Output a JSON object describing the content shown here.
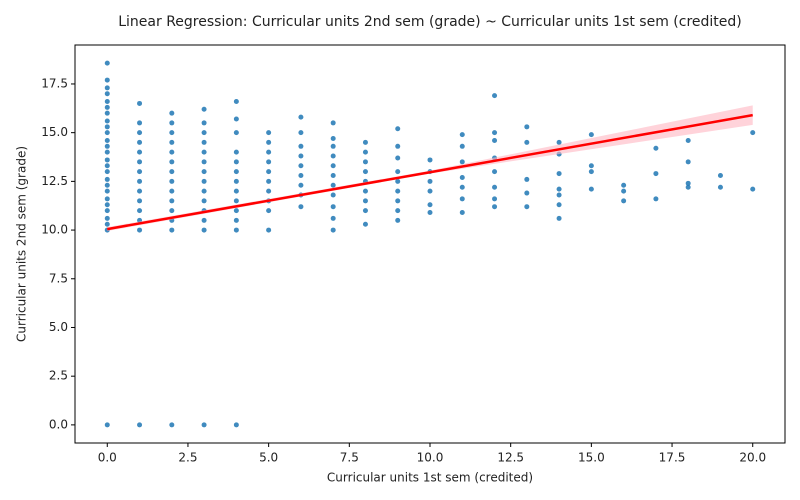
{
  "chart_data": {
    "type": "scatter",
    "title": "Linear Regression: Curricular units 2nd sem (grade) ~ Curricular units 1st sem (credited)",
    "x_label": "Curricular units 1st sem (credited)",
    "y_label": "Curricular units 2nd sem (grade)",
    "color": "#1f77b4",
    "x": [
      0,
      0,
      0,
      0,
      0,
      0,
      0,
      0,
      0,
      0,
      0,
      0,
      0,
      0,
      0,
      0,
      0,
      0,
      0,
      0,
      0,
      0,
      0,
      0,
      0,
      0,
      1,
      1,
      1,
      1,
      1,
      1,
      1,
      1,
      1,
      1,
      1,
      1,
      1,
      1,
      2,
      2,
      2,
      2,
      2,
      2,
      2,
      2,
      2,
      2,
      2,
      2,
      2,
      2,
      3,
      3,
      3,
      3,
      3,
      3,
      3,
      3,
      3,
      3,
      3,
      3,
      3,
      3,
      4,
      4,
      4,
      4,
      4,
      4,
      4,
      4,
      4,
      4,
      4,
      4,
      4,
      5,
      5,
      5,
      5,
      5,
      5,
      5,
      5,
      5,
      5,
      6,
      6,
      6,
      6,
      6,
      6,
      6,
      6,
      6,
      7,
      7,
      7,
      7,
      7,
      7,
      7,
      7,
      7,
      7,
      7,
      8,
      8,
      8,
      8,
      8,
      8,
      8,
      8,
      8,
      9,
      9,
      9,
      9,
      9,
      9,
      9,
      9,
      9,
      10,
      10,
      10,
      10,
      10,
      10,
      11,
      11,
      11,
      11,
      11,
      11,
      11,
      12,
      12,
      12,
      12,
      12,
      12,
      12,
      12,
      13,
      13,
      13,
      13,
      13,
      14,
      14,
      14,
      14,
      14,
      14,
      14,
      15,
      15,
      15,
      15,
      16,
      16,
      16,
      17,
      17,
      17,
      18,
      18,
      18,
      18,
      19,
      19,
      20,
      20
    ],
    "y": [
      0,
      10,
      10.3,
      10.6,
      11,
      11.3,
      11.6,
      12,
      12.3,
      12.6,
      13,
      13.3,
      13.6,
      14,
      14.3,
      14.6,
      15,
      15.3,
      15.6,
      16,
      16.3,
      16.6,
      17,
      17.3,
      17.7,
      18.57,
      0,
      10,
      10.5,
      11,
      11.5,
      12,
      12.5,
      13,
      13.5,
      14,
      14.5,
      15,
      15.5,
      16.5,
      0,
      10,
      10.5,
      11,
      11.5,
      12,
      12.5,
      13,
      13.5,
      14,
      14.5,
      15,
      15.5,
      16,
      0,
      10,
      10.5,
      11,
      11.5,
      12,
      12.5,
      13,
      13.5,
      14,
      14.5,
      15,
      15.5,
      16.2,
      0,
      10,
      10.5,
      11,
      11.5,
      12,
      12.5,
      13,
      13.5,
      14,
      15,
      15.7,
      16.6,
      10,
      11,
      11.5,
      12,
      12.5,
      13,
      13.5,
      14,
      14.5,
      15,
      11.2,
      11.8,
      12.3,
      12.8,
      13.3,
      13.8,
      14.3,
      15,
      15.8,
      10,
      10.6,
      11.2,
      11.8,
      12.3,
      12.8,
      13.3,
      13.8,
      14.3,
      14.7,
      15.5,
      10.3,
      11,
      11.5,
      12,
      12.5,
      13,
      13.5,
      14,
      14.5,
      10.5,
      11,
      11.5,
      12,
      12.5,
      13,
      13.7,
      14.3,
      15.2,
      10.9,
      11.3,
      12,
      12.5,
      13,
      13.6,
      10.9,
      11.6,
      12.2,
      12.7,
      13.5,
      14.3,
      14.9,
      11.2,
      11.6,
      12.2,
      13,
      13.7,
      14.6,
      15,
      16.9,
      11.2,
      11.9,
      12.6,
      14.5,
      15.3,
      10.6,
      11.3,
      11.8,
      12.1,
      12.9,
      13.9,
      14.5,
      12.1,
      13,
      13.3,
      14.9,
      11.5,
      12,
      12.3,
      11.6,
      12.9,
      14.2,
      12.2,
      12.4,
      13.5,
      14.6,
      12.2,
      12.8,
      12.1,
      15
    ],
    "regression": {
      "color": "#ff0000",
      "band_color": "#ffb6c1",
      "x": [
        0,
        10,
        20
      ],
      "y": [
        10.05,
        12.97,
        15.9
      ],
      "ci_lower": [
        9.95,
        12.9,
        15.4
      ],
      "ci_upper": [
        10.15,
        13.05,
        16.4
      ]
    },
    "xlim": [
      -1,
      21
    ],
    "ylim": [
      -0.93,
      19.5
    ],
    "xticks": [
      {
        "value": 0,
        "label": "0.0"
      },
      {
        "value": 2.5,
        "label": "2.5"
      },
      {
        "value": 5,
        "label": "5.0"
      },
      {
        "value": 7.5,
        "label": "7.5"
      },
      {
        "value": 10,
        "label": "10.0"
      },
      {
        "value": 12.5,
        "label": "12.5"
      },
      {
        "value": 15,
        "label": "15.0"
      },
      {
        "value": 17.5,
        "label": "17.5"
      },
      {
        "value": 20,
        "label": "20.0"
      }
    ],
    "yticks": [
      {
        "value": 0,
        "label": "0.0"
      },
      {
        "value": 2.5,
        "label": "2.5"
      },
      {
        "value": 5,
        "label": "5.0"
      },
      {
        "value": 7.5,
        "label": "7.5"
      },
      {
        "value": 10,
        "label": "10.0"
      },
      {
        "value": 12.5,
        "label": "12.5"
      },
      {
        "value": 15,
        "label": "15.0"
      },
      {
        "value": 17.5,
        "label": "17.5"
      }
    ]
  }
}
